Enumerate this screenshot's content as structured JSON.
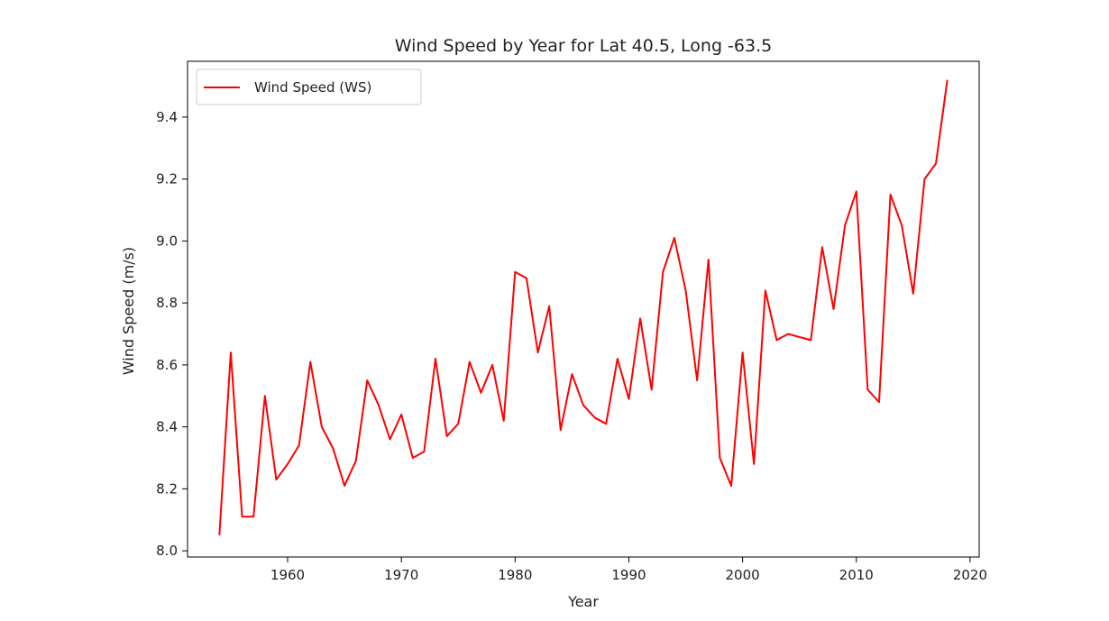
{
  "chart_data": {
    "type": "line",
    "title": "Wind Speed by Year for Lat 40.5, Long -63.5",
    "xlabel": "Year",
    "ylabel": "Wind Speed (m/s)",
    "xlim": [
      1951.2,
      2020.8
    ],
    "ylim": [
      7.98,
      9.58
    ],
    "xticks": [
      1960,
      1970,
      1980,
      1990,
      2000,
      2010,
      2020
    ],
    "yticks": [
      8.0,
      8.2,
      8.4,
      8.6,
      8.8,
      9.0,
      9.2,
      9.4
    ],
    "ytick_labels": [
      "8.0",
      "8.2",
      "8.4",
      "8.6",
      "8.8",
      "9.0",
      "9.2",
      "9.4"
    ],
    "grid": false,
    "legend_position": "top-left",
    "series": [
      {
        "name": "Wind Speed (WS)",
        "color": "#ff0000",
        "x": [
          1954,
          1955,
          1956,
          1957,
          1958,
          1959,
          1960,
          1961,
          1962,
          1963,
          1964,
          1965,
          1966,
          1967,
          1968,
          1969,
          1970,
          1971,
          1972,
          1973,
          1974,
          1975,
          1976,
          1977,
          1978,
          1979,
          1980,
          1981,
          1982,
          1983,
          1984,
          1985,
          1986,
          1987,
          1988,
          1989,
          1990,
          1991,
          1992,
          1993,
          1994,
          1995,
          1996,
          1997,
          1998,
          1999,
          2000,
          2001,
          2002,
          2003,
          2004,
          2005,
          2006,
          2007,
          2008,
          2009,
          2010,
          2011,
          2012,
          2013,
          2014,
          2015,
          2016,
          2017,
          2018
        ],
        "values": [
          8.05,
          8.64,
          8.11,
          8.11,
          8.5,
          8.23,
          8.28,
          8.34,
          8.61,
          8.4,
          8.33,
          8.21,
          8.29,
          8.55,
          8.47,
          8.36,
          8.44,
          8.3,
          8.32,
          8.62,
          8.37,
          8.41,
          8.61,
          8.51,
          8.6,
          8.42,
          8.9,
          8.88,
          8.64,
          8.79,
          8.39,
          8.57,
          8.47,
          8.43,
          8.41,
          8.62,
          8.49,
          8.75,
          8.52,
          8.9,
          9.01,
          8.84,
          8.55,
          8.94,
          8.3,
          8.21,
          8.64,
          8.28,
          8.84,
          8.68,
          8.7,
          8.69,
          8.68,
          8.98,
          8.78,
          9.05,
          9.16,
          8.52,
          8.48,
          9.15,
          9.05,
          8.83,
          9.2,
          9.25,
          9.52
        ]
      }
    ]
  }
}
